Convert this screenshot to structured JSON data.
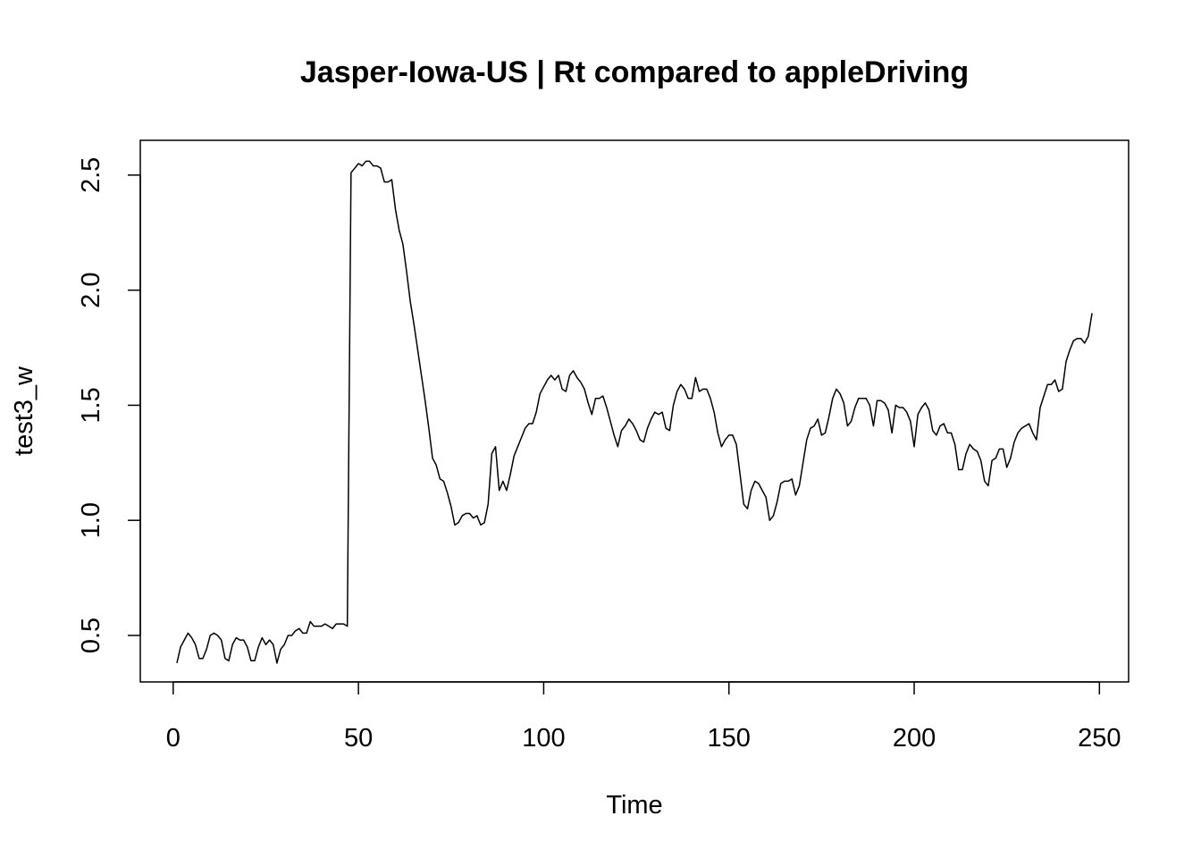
{
  "chart_data": {
    "type": "line",
    "title": "Jasper-Iowa-US | Rt compared to appleDriving",
    "x_label": "Time",
    "y_label": "test3_w",
    "x": [
      1,
      2,
      3,
      4,
      5,
      6,
      7,
      8,
      9,
      10,
      11,
      12,
      13,
      14,
      15,
      16,
      17,
      18,
      19,
      20,
      21,
      22,
      23,
      24,
      25,
      26,
      27,
      28,
      29,
      30,
      31,
      32,
      33,
      34,
      35,
      36,
      37,
      38,
      39,
      40,
      41,
      42,
      43,
      44,
      45,
      46,
      47,
      48,
      49,
      50,
      51,
      52,
      53,
      54,
      55,
      56,
      57,
      58,
      59,
      60,
      61,
      62,
      63,
      64,
      65,
      66,
      67,
      68,
      69,
      70,
      71,
      72,
      73,
      74,
      75,
      76,
      77,
      78,
      79,
      80,
      81,
      82,
      83,
      84,
      85,
      86,
      87,
      88,
      89,
      90,
      91,
      92,
      93,
      94,
      95,
      96,
      97,
      98,
      99,
      100,
      101,
      102,
      103,
      104,
      105,
      106,
      107,
      108,
      109,
      110,
      111,
      112,
      113,
      114,
      115,
      116,
      117,
      118,
      119,
      120,
      121,
      122,
      123,
      124,
      125,
      126,
      127,
      128,
      129,
      130,
      131,
      132,
      133,
      134,
      135,
      136,
      137,
      138,
      139,
      140,
      141,
      142,
      143,
      144,
      145,
      146,
      147,
      148,
      149,
      150,
      151,
      152,
      153,
      154,
      155,
      156,
      157,
      158,
      159,
      160,
      161,
      162,
      163,
      164,
      165,
      166,
      167,
      168,
      169,
      170,
      171,
      172,
      173,
      174,
      175,
      176,
      177,
      178,
      179,
      180,
      181,
      182,
      183,
      184,
      185,
      186,
      187,
      188,
      189,
      190,
      191,
      192,
      193,
      194,
      195,
      196,
      197,
      198,
      199,
      200,
      201,
      202,
      203,
      204,
      205,
      206,
      207,
      208,
      209,
      210,
      211,
      212,
      213,
      214,
      215,
      216,
      217,
      218,
      219,
      220,
      221,
      222,
      223,
      224,
      225,
      226,
      227,
      228,
      229,
      230,
      231,
      232,
      233,
      234,
      235,
      236,
      237,
      238,
      239,
      240,
      241,
      242,
      243,
      244,
      245,
      246,
      247,
      248
    ],
    "series": [
      {
        "color": "#000000",
        "values": [
          0.38,
          0.45,
          0.48,
          0.51,
          0.49,
          0.46,
          0.4,
          0.4,
          0.44,
          0.5,
          0.51,
          0.5,
          0.48,
          0.4,
          0.39,
          0.46,
          0.49,
          0.48,
          0.48,
          0.45,
          0.39,
          0.39,
          0.45,
          0.49,
          0.46,
          0.48,
          0.46,
          0.38,
          0.44,
          0.46,
          0.5,
          0.5,
          0.52,
          0.53,
          0.51,
          0.51,
          0.56,
          0.54,
          0.54,
          0.54,
          0.55,
          0.54,
          0.53,
          0.55,
          0.55,
          0.55,
          0.54,
          2.51,
          2.53,
          2.55,
          2.54,
          2.56,
          2.56,
          2.54,
          2.54,
          2.53,
          2.47,
          2.47,
          2.48,
          2.35,
          2.26,
          2.2,
          2.08,
          1.95,
          1.85,
          1.74,
          1.63,
          1.52,
          1.4,
          1.27,
          1.24,
          1.18,
          1.17,
          1.12,
          1.06,
          0.98,
          0.99,
          1.02,
          1.03,
          1.03,
          1.01,
          1.02,
          0.98,
          0.99,
          1.07,
          1.29,
          1.32,
          1.13,
          1.17,
          1.13,
          1.2,
          1.28,
          1.32,
          1.36,
          1.4,
          1.42,
          1.42,
          1.47,
          1.55,
          1.58,
          1.61,
          1.63,
          1.61,
          1.63,
          1.57,
          1.56,
          1.63,
          1.65,
          1.62,
          1.6,
          1.57,
          1.51,
          1.46,
          1.53,
          1.53,
          1.54,
          1.49,
          1.43,
          1.37,
          1.32,
          1.39,
          1.41,
          1.44,
          1.42,
          1.39,
          1.35,
          1.34,
          1.4,
          1.44,
          1.47,
          1.46,
          1.47,
          1.4,
          1.39,
          1.5,
          1.56,
          1.59,
          1.57,
          1.53,
          1.53,
          1.62,
          1.56,
          1.57,
          1.57,
          1.53,
          1.47,
          1.38,
          1.32,
          1.35,
          1.37,
          1.37,
          1.33,
          1.2,
          1.07,
          1.05,
          1.13,
          1.17,
          1.16,
          1.13,
          1.1,
          1.0,
          1.02,
          1.08,
          1.16,
          1.17,
          1.17,
          1.18,
          1.11,
          1.15,
          1.25,
          1.35,
          1.4,
          1.41,
          1.44,
          1.37,
          1.38,
          1.45,
          1.53,
          1.57,
          1.55,
          1.51,
          1.41,
          1.43,
          1.49,
          1.53,
          1.53,
          1.53,
          1.5,
          1.41,
          1.52,
          1.52,
          1.51,
          1.48,
          1.38,
          1.5,
          1.49,
          1.49,
          1.47,
          1.43,
          1.32,
          1.46,
          1.49,
          1.51,
          1.48,
          1.39,
          1.37,
          1.41,
          1.42,
          1.38,
          1.38,
          1.33,
          1.22,
          1.22,
          1.29,
          1.33,
          1.31,
          1.3,
          1.26,
          1.17,
          1.15,
          1.26,
          1.27,
          1.31,
          1.31,
          1.23,
          1.27,
          1.34,
          1.38,
          1.4,
          1.41,
          1.42,
          1.38,
          1.35,
          1.49,
          1.54,
          1.59,
          1.59,
          1.61,
          1.56,
          1.57,
          1.69,
          1.74,
          1.78,
          1.79,
          1.79,
          1.77,
          1.8,
          1.9
        ]
      }
    ],
    "xlim": [
      -8.88,
      257.88
    ],
    "xticks": [
      0,
      50,
      100,
      150,
      200,
      250
    ],
    "ylim": [
      0.298,
      2.651
    ],
    "yticks": [
      {
        "value": 0.5,
        "label": "0.5"
      },
      {
        "value": 1,
        "label": "1.0"
      },
      {
        "value": 1.5,
        "label": "1.5"
      },
      {
        "value": 2,
        "label": "2.0"
      },
      {
        "value": 2.5,
        "label": "2.5"
      }
    ]
  }
}
